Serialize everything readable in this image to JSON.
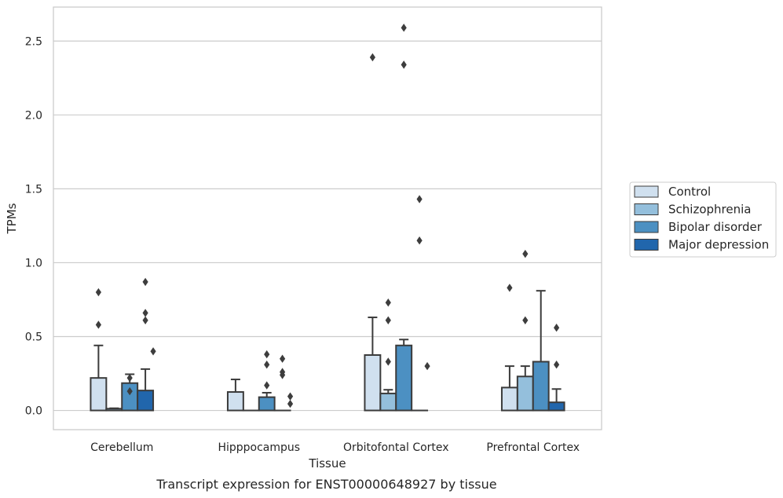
{
  "chart_data": {
    "type": "bar",
    "title": "",
    "caption": "Transcript expression for ENST00000648927 by tissue",
    "xlabel": "Tissue",
    "ylabel": "TPMs",
    "ylim": [
      -0.13,
      2.73
    ],
    "yticks": [
      "0.0",
      "0.5",
      "1.0",
      "1.5",
      "2.0",
      "2.5"
    ],
    "grid": true,
    "legend_position": "right",
    "categories": [
      "Cerebellum",
      "Hipppocampus",
      "Orbitofontal Cortex",
      "Prefrontal Cortex"
    ],
    "series": [
      {
        "name": "Control",
        "color": "#d0e0ef",
        "values": [
          0.22,
          0.125,
          0.375,
          0.155
        ],
        "whisker_high": [
          0.44,
          0.21,
          0.63,
          0.3
        ],
        "outliers": [
          [
            0.58,
            0.8
          ],
          [],
          [
            2.39
          ],
          [
            0.83
          ]
        ]
      },
      {
        "name": "Schizophrenia",
        "color": "#94bfdc",
        "values": [
          0.012,
          0.0,
          0.115,
          0.23
        ],
        "whisker_high": [
          0.015,
          0.0,
          0.14,
          0.3
        ],
        "outliers": [
          [],
          [],
          [
            0.33,
            0.61,
            0.73
          ],
          [
            0.61,
            1.06
          ]
        ]
      },
      {
        "name": "Bipolar disorder",
        "color": "#4c90c2",
        "values": [
          0.185,
          0.09,
          0.44,
          0.33
        ],
        "whisker_high": [
          0.245,
          0.12,
          0.48,
          0.81
        ],
        "outliers": [
          [
            0.13,
            0.22
          ],
          [
            0.17,
            0.31,
            0.38
          ],
          [
            2.34,
            2.59
          ],
          []
        ]
      },
      {
        "name": "Major depression",
        "color": "#2166ac",
        "values": [
          0.135,
          0.0,
          0.0,
          0.055
        ],
        "whisker_high": [
          0.28,
          0.0,
          0.0,
          0.145
        ],
        "outliers": [
          [
            0.61,
            0.66,
            0.87
          ],
          [
            0.24,
            0.26,
            0.35
          ],
          [
            1.43,
            1.15
          ],
          [
            0.31,
            0.56
          ]
        ]
      }
    ],
    "fourth_series_outliers_note": "",
    "extra_outliers": [
      [
        0.4
      ],
      [
        0.045,
        0.095
      ],
      [
        0.3
      ],
      []
    ]
  }
}
